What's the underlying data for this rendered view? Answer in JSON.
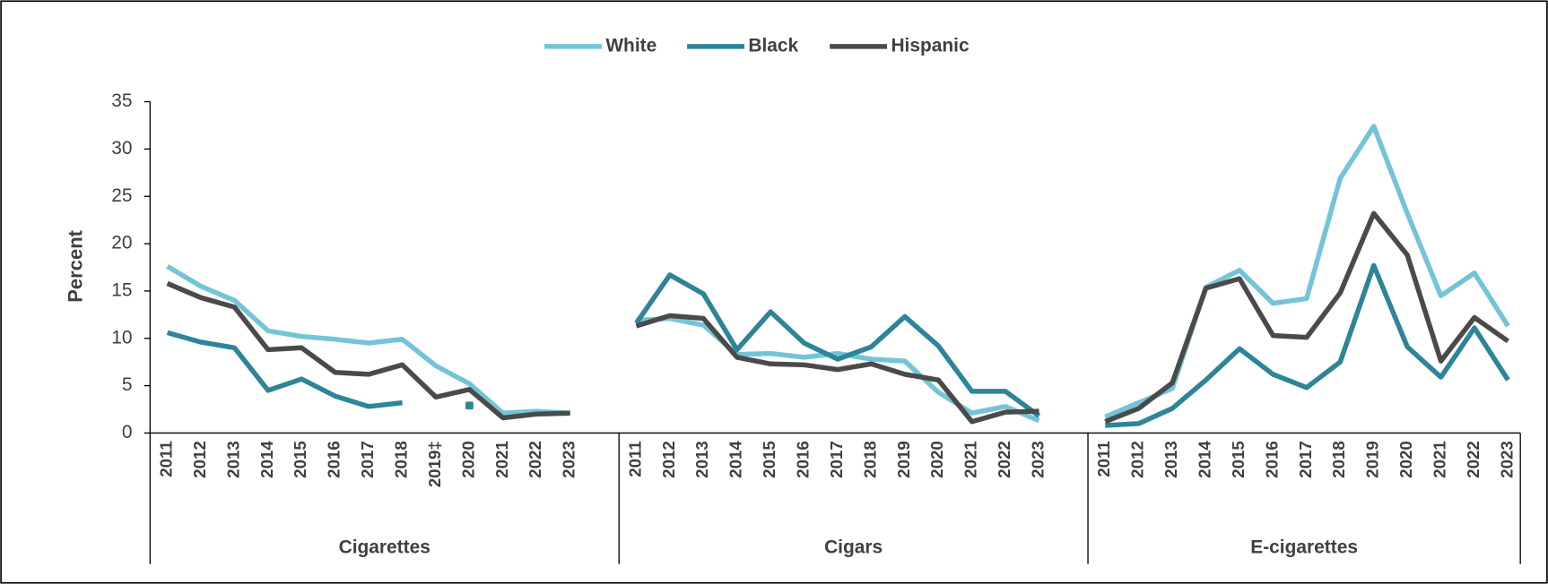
{
  "chart_data": {
    "type": "line",
    "y_label": "Percent",
    "ylim": [
      0,
      35
    ],
    "yticks": [
      0,
      5,
      10,
      15,
      20,
      25,
      30,
      35
    ],
    "grid": false,
    "legend": "top",
    "groups": [
      {
        "name": "Cigarettes",
        "categories": [
          "2011",
          "2012",
          "2013",
          "2014",
          "2015",
          "2016",
          "2017",
          "2018",
          "2019‡",
          "2020",
          "2021",
          "2022",
          "2023"
        ]
      },
      {
        "name": "Cigars",
        "categories": [
          "2011",
          "2012",
          "2013",
          "2014",
          "2015",
          "2016",
          "2017",
          "2018",
          "2019",
          "2020",
          "2021",
          "2022",
          "2023"
        ]
      },
      {
        "name": "E-cigarettes",
        "categories": [
          "2011",
          "2012",
          "2013",
          "2014",
          "2015",
          "2016",
          "2017",
          "2018",
          "2019",
          "2020",
          "2021",
          "2022",
          "2023"
        ]
      }
    ],
    "series": [
      {
        "name": "White",
        "color": "#74c4d9",
        "values": [
          [
            17.6,
            15.5,
            14.0,
            10.8,
            10.2,
            9.9,
            9.5,
            9.9,
            7.1,
            5.2,
            2.1,
            2.3,
            2.1
          ],
          [
            11.9,
            12.1,
            11.4,
            8.3,
            8.4,
            8.0,
            8.4,
            7.8,
            7.6,
            4.3,
            2.1,
            2.8,
            1.3
          ],
          [
            1.7,
            3.2,
            4.7,
            15.4,
            17.2,
            13.7,
            14.2,
            26.9,
            32.4,
            23.2,
            14.5,
            16.9,
            11.3
          ]
        ]
      },
      {
        "name": "Black",
        "color": "#2e8499",
        "values": [
          [
            10.6,
            9.6,
            9.0,
            4.5,
            5.7,
            3.9,
            2.8,
            3.2,
            null,
            2.9,
            null,
            null,
            null
          ],
          [
            11.6,
            16.7,
            14.7,
            8.8,
            12.8,
            9.5,
            7.8,
            9.1,
            12.3,
            9.2,
            4.4,
            4.4,
            1.8
          ],
          [
            0.8,
            1.0,
            2.6,
            5.6,
            8.9,
            6.2,
            4.8,
            7.5,
            17.7,
            9.1,
            5.9,
            11.1,
            5.6
          ]
        ]
      },
      {
        "name": "Hispanic",
        "color": "#4a4a4a",
        "values": [
          [
            15.8,
            14.3,
            13.3,
            8.8,
            9.0,
            6.4,
            6.2,
            7.2,
            3.8,
            4.6,
            1.6,
            2.0,
            2.1
          ],
          [
            11.3,
            12.4,
            12.1,
            8.0,
            7.3,
            7.2,
            6.7,
            7.3,
            6.2,
            5.6,
            1.2,
            2.2,
            2.3
          ],
          [
            1.2,
            2.6,
            5.3,
            15.3,
            16.3,
            10.3,
            10.1,
            14.8,
            23.2,
            18.8,
            7.6,
            12.2,
            9.7
          ]
        ]
      }
    ]
  }
}
